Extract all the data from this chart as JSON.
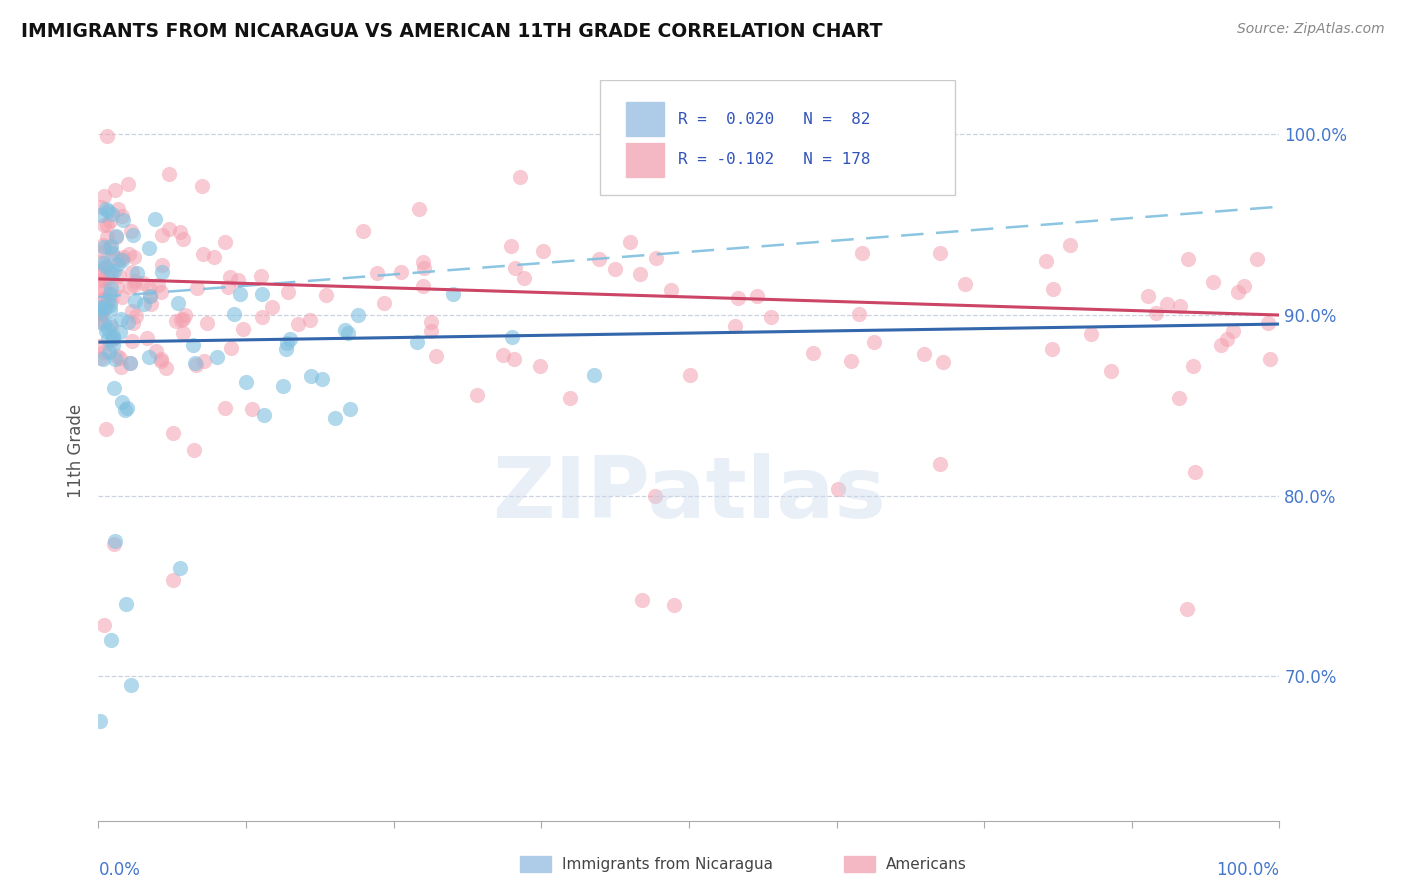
{
  "title": "IMMIGRANTS FROM NICARAGUA VS AMERICAN 11TH GRADE CORRELATION CHART",
  "source_text": "Source: ZipAtlas.com",
  "ylabel": "11th Grade",
  "blue_R": 0.02,
  "blue_N": 82,
  "pink_R": -0.102,
  "pink_N": 178,
  "blue_color": "#7fbfdf",
  "pink_color": "#f4a0b0",
  "blue_line_color": "#3366aa",
  "pink_line_color": "#cc4466",
  "dashed_line_color": "#7fbfdf",
  "ytick_values": [
    0.7,
    0.8,
    0.9,
    1.0
  ],
  "watermark": "ZIPatlas",
  "blue_trend_x": [
    0.0,
    1.0
  ],
  "blue_trend_y": [
    0.885,
    0.895
  ],
  "pink_trend_x": [
    0.0,
    1.0
  ],
  "pink_trend_y": [
    0.92,
    0.9
  ],
  "dashed_trend_x": [
    0.0,
    1.0
  ],
  "dashed_trend_y": [
    0.91,
    0.96
  ],
  "xlim": [
    0.0,
    1.0
  ],
  "ylim": [
    0.62,
    1.03
  ]
}
